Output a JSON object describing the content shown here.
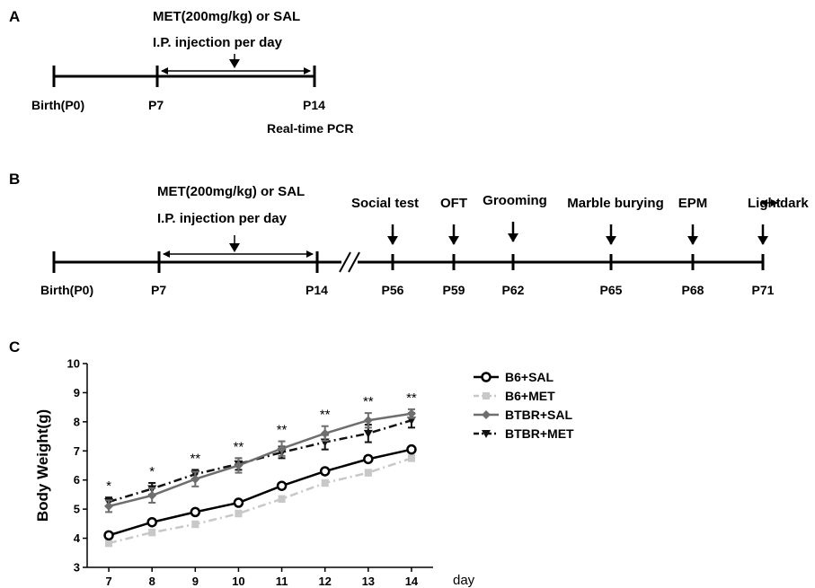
{
  "panel_a": {
    "letter": "A",
    "treatment": "MET(200mg/kg) or SAL",
    "injection": "I.P. injection per day",
    "labels": [
      "Birth(P0)",
      "P7",
      "P14"
    ],
    "note": "Real-time PCR"
  },
  "panel_b": {
    "letter": "B",
    "treatment": "MET(200mg/kg) or SAL",
    "injection": "I.P. injection per day",
    "start_labels": [
      "Birth(P0)",
      "P7",
      "P14"
    ],
    "tests": [
      {
        "name": "Social test",
        "day": "P56"
      },
      {
        "name": "OFT",
        "day": "P59"
      },
      {
        "name": "Grooming",
        "day": "P62"
      },
      {
        "name": "Marble burying",
        "day": "P65"
      },
      {
        "name": "EPM",
        "day": "P68"
      },
      {
        "name": "Light",
        "name_suffix": "dark",
        "day": "P71"
      }
    ]
  },
  "panel_c": {
    "letter": "C"
  },
  "colors": {
    "b6_sal": "#000000",
    "b6_met": "#c8c8c8",
    "btbr_sal": "#6e6e6e",
    "btbr_met": "#111111"
  },
  "chart_data": {
    "type": "line",
    "title": "",
    "xlabel": "day",
    "ylabel": "Body Weight(g)",
    "x": [
      7,
      8,
      9,
      10,
      11,
      12,
      13,
      14
    ],
    "xlim": [
      6.5,
      14.5
    ],
    "ylim": [
      3,
      10
    ],
    "yticks": [
      3,
      4,
      5,
      6,
      7,
      8,
      9,
      10
    ],
    "legend_position": "right",
    "series": [
      {
        "name": "B6+SAL",
        "values": [
          4.1,
          4.55,
          4.9,
          5.22,
          5.8,
          6.3,
          6.72,
          7.05
        ],
        "err": [
          0.1,
          0.1,
          0.1,
          0.1,
          0.1,
          0.1,
          0.1,
          0.1
        ],
        "color": "#000000",
        "marker": "circle-open",
        "dash": "solid"
      },
      {
        "name": "B6+MET",
        "values": [
          3.83,
          4.2,
          4.48,
          4.85,
          5.35,
          5.9,
          6.25,
          6.75
        ],
        "err": [
          0.1,
          0.1,
          0.1,
          0.1,
          0.1,
          0.1,
          0.1,
          0.1
        ],
        "color": "#c8c8c8",
        "marker": "square",
        "dash": "dashdot"
      },
      {
        "name": "BTBR+SAL",
        "values": [
          5.1,
          5.47,
          6.03,
          6.5,
          7.08,
          7.6,
          8.05,
          8.28
        ],
        "err": [
          0.2,
          0.25,
          0.25,
          0.25,
          0.25,
          0.25,
          0.25,
          0.15
        ],
        "color": "#6e6e6e",
        "marker": "diamond",
        "dash": "solid"
      },
      {
        "name": "BTBR+MET",
        "values": [
          5.25,
          5.7,
          6.2,
          6.55,
          6.95,
          7.3,
          7.6,
          8.05
        ],
        "err": [
          0.15,
          0.2,
          0.15,
          0.2,
          0.2,
          0.25,
          0.3,
          0.25
        ],
        "color": "#111111",
        "marker": "triangle-down",
        "dash": "dashdot"
      }
    ],
    "annotations": [
      {
        "x": 7,
        "text": "*"
      },
      {
        "x": 8,
        "text": "*"
      },
      {
        "x": 9,
        "text": "**"
      },
      {
        "x": 10,
        "text": "**"
      },
      {
        "x": 11,
        "text": "**"
      },
      {
        "x": 12,
        "text": "**"
      },
      {
        "x": 13,
        "text": "**"
      },
      {
        "x": 14,
        "text": "**"
      }
    ]
  }
}
